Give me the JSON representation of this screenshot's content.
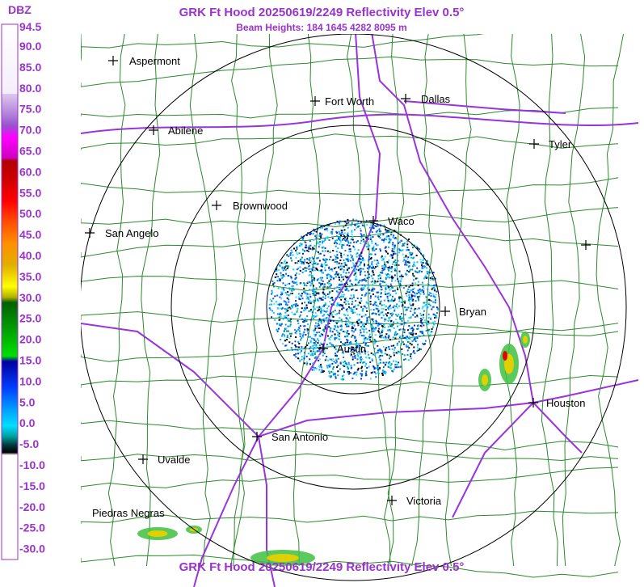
{
  "header": {
    "title": "GRK Ft Hood 20250619/2249 Reflectivity Elev 0.5°",
    "subtitle": "Beam Heights: 184 1645 4282 8095 m",
    "footer_title": "GRK Ft Hood 20250619/2249 Reflectivity Elev 0.5°"
  },
  "legend": {
    "unit": "DBZ",
    "labels": [
      "94.5",
      "90.0",
      "85.0",
      "80.0",
      "75.0",
      "70.0",
      "65.0",
      "60.0",
      "55.0",
      "50.0",
      "45.0",
      "40.0",
      "35.0",
      "30.0",
      "25.0",
      "20.0",
      "15.0",
      "10.0",
      "5.0",
      "0.0",
      "-5.0",
      "-10.0",
      "-15.0",
      "-20.0",
      "-25.0",
      "-30.0"
    ]
  },
  "cities": [
    "Aspermont",
    "Abilene",
    "Fort Worth",
    "Dallas",
    "Tyler",
    "Brownwood",
    "Waco",
    "San Angelo",
    "Bryan",
    "Austin",
    "Houston",
    "San Antonio",
    "Uvalde",
    "Victoria",
    "Piedras Negras"
  ]
}
